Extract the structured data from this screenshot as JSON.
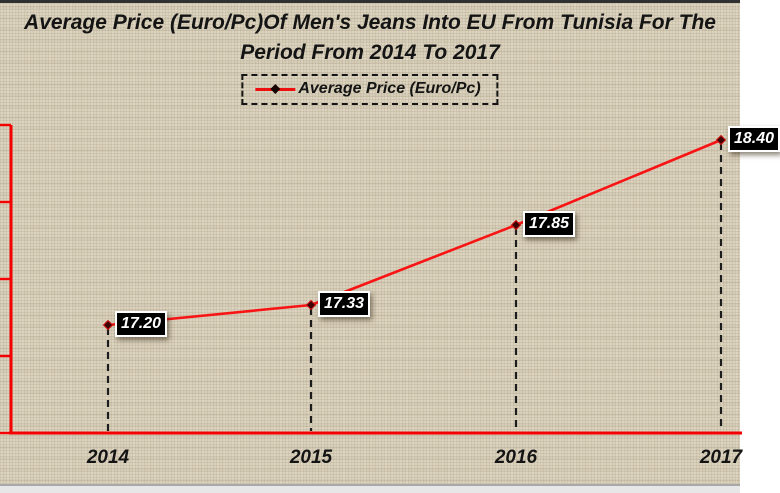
{
  "chart_data": {
    "type": "line",
    "title": "Average Price (Euro/Pc)Of Men's Jeans Into EU From Tunisia For The Period From 2014 To 2017",
    "title_lines": [
      "Average Price (Euro/Pc)Of Men's Jeans Into EU From Tunisia For The",
      "Period From 2014 To 2017"
    ],
    "legend": {
      "label": "Average Price (Euro/Pc)",
      "position": "top-center",
      "border": "dashed"
    },
    "categories": [
      "2014",
      "2015",
      "2016",
      "2017"
    ],
    "series": [
      {
        "name": "Average Price (Euro/Pc)",
        "values": [
          17.2,
          17.33,
          17.85,
          18.4
        ]
      }
    ],
    "data_labels": [
      "17.20",
      "17.33",
      "17.85",
      "18.40"
    ],
    "xlabel": "",
    "ylabel": "",
    "ylim": [
      16.5,
      18.5
    ],
    "y_tick_step": 0.5,
    "y_tick_labels_visible": false,
    "grid": false,
    "marker": "diamond",
    "drop_lines": "dashed",
    "colors": {
      "line": "#f81414",
      "axis": "#f40000",
      "drop_line": "#1c1c1c",
      "marker_fill": "#3d0404",
      "marker_edge": "#d21010",
      "label_bg": "#000000",
      "label_text": "#ffffff",
      "background": "#dbd2bd",
      "text": "#141414"
    }
  }
}
